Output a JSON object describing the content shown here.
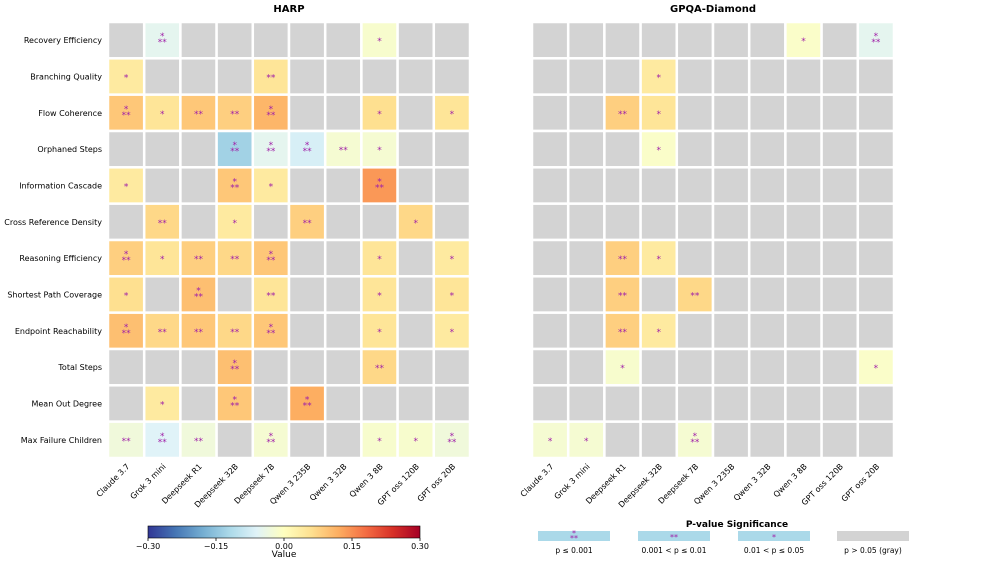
{
  "chart_data": [
    {
      "type": "heatmap",
      "title": "HARP",
      "rows": [
        "Recovery Efficiency",
        "Branching Quality",
        "Flow Coherence",
        "Orphaned Steps",
        "Information Cascade",
        "Cross Reference Density",
        "Reasoning Efficiency",
        "Shortest Path Coverage",
        "Endpoint Reachability",
        "Total Steps",
        "Mean Out Degree",
        "Max Failure Children"
      ],
      "columns": [
        "Claude 3.7",
        "Grok 3 mini",
        "Deepseek R1",
        "Deepseek 32B",
        "Deepseek 7B",
        "Qwen 3 235B",
        "Qwen 3 32B",
        "Qwen 3 8B",
        "GPT oss 120B",
        "GPT oss 20B"
      ],
      "values": [
        [
          null,
          -0.05,
          null,
          null,
          null,
          null,
          null,
          -0.015,
          null,
          null
        ],
        [
          0.04,
          null,
          null,
          null,
          0.05,
          null,
          null,
          null,
          null,
          null
        ],
        [
          0.09,
          0.05,
          0.09,
          0.08,
          0.11,
          null,
          null,
          0.06,
          null,
          0.05
        ],
        [
          null,
          null,
          null,
          -0.13,
          -0.05,
          -0.07,
          -0.02,
          -0.02,
          null,
          null
        ],
        [
          0.04,
          null,
          null,
          0.09,
          0.04,
          null,
          null,
          0.14,
          null,
          null
        ],
        [
          null,
          0.07,
          null,
          0.04,
          null,
          0.08,
          null,
          null,
          0.07,
          null
        ],
        [
          0.08,
          0.05,
          0.08,
          0.07,
          0.09,
          null,
          null,
          0.05,
          null,
          0.04
        ],
        [
          0.06,
          null,
          0.1,
          null,
          0.05,
          null,
          null,
          0.05,
          null,
          0.05
        ],
        [
          0.1,
          0.07,
          0.09,
          0.07,
          0.09,
          null,
          null,
          0.05,
          null,
          0.04
        ],
        [
          null,
          null,
          null,
          0.1,
          null,
          null,
          null,
          0.07,
          null,
          null
        ],
        [
          null,
          0.04,
          null,
          0.09,
          null,
          0.12,
          null,
          null,
          null,
          null
        ],
        [
          -0.03,
          -0.06,
          -0.03,
          null,
          -0.02,
          null,
          null,
          -0.015,
          -0.015,
          -0.03
        ]
      ],
      "significance": [
        [
          "",
          "***",
          "",
          "",
          "",
          "",
          "",
          "*",
          "",
          ""
        ],
        [
          "*",
          "",
          "",
          "",
          "**",
          "",
          "",
          "",
          "",
          ""
        ],
        [
          "***",
          "*",
          "**",
          "**",
          "***",
          "",
          "",
          "*",
          "",
          "*"
        ],
        [
          "",
          "",
          "",
          "***",
          "***",
          "***",
          "**",
          "*",
          "",
          ""
        ],
        [
          "*",
          "",
          "",
          "***",
          "*",
          "",
          "",
          "***",
          "",
          ""
        ],
        [
          "",
          "**",
          "",
          "*",
          "",
          "**",
          "",
          "",
          "*",
          ""
        ],
        [
          "***",
          "*",
          "**",
          "**",
          "***",
          "",
          "",
          "*",
          "",
          "*"
        ],
        [
          "*",
          "",
          "***",
          "",
          "**",
          "",
          "",
          "*",
          "",
          "*"
        ],
        [
          "***",
          "**",
          "**",
          "**",
          "***",
          "",
          "",
          "*",
          "",
          "*"
        ],
        [
          "",
          "",
          "",
          "***",
          "",
          "",
          "",
          "**",
          "",
          ""
        ],
        [
          "",
          "*",
          "",
          "***",
          "",
          "***",
          "",
          "",
          "",
          ""
        ],
        [
          "**",
          "***",
          "**",
          "",
          "***",
          "",
          "",
          "*",
          "*",
          "***"
        ]
      ]
    },
    {
      "type": "heatmap",
      "title": "GPQA-Diamond",
      "rows": [
        "Recovery Efficiency",
        "Branching Quality",
        "Flow Coherence",
        "Orphaned Steps",
        "Information Cascade",
        "Cross Reference Density",
        "Reasoning Efficiency",
        "Shortest Path Coverage",
        "Endpoint Reachability",
        "Total Steps",
        "Mean Out Degree",
        "Max Failure Children"
      ],
      "columns": [
        "Claude 3.7",
        "Grok 3 mini",
        "Deepseek R1",
        "Deepseek 32B",
        "Deepseek 7B",
        "Qwen 3 235B",
        "Qwen 3 32B",
        "Qwen 3 8B",
        "GPT oss 120B",
        "GPT oss 20B"
      ],
      "values": [
        [
          null,
          null,
          null,
          null,
          null,
          null,
          null,
          -0.01,
          null,
          -0.05
        ],
        [
          null,
          null,
          null,
          0.04,
          null,
          null,
          null,
          null,
          null,
          null
        ],
        [
          null,
          null,
          0.08,
          0.05,
          null,
          null,
          null,
          null,
          null,
          null
        ],
        [
          null,
          null,
          null,
          -0.01,
          null,
          null,
          null,
          null,
          null,
          null
        ],
        [
          null,
          null,
          null,
          null,
          null,
          null,
          null,
          null,
          null,
          null
        ],
        [
          null,
          null,
          null,
          null,
          null,
          null,
          null,
          null,
          null,
          null
        ],
        [
          null,
          null,
          0.08,
          0.04,
          null,
          null,
          null,
          null,
          null,
          null
        ],
        [
          null,
          null,
          0.08,
          null,
          0.07,
          null,
          null,
          null,
          null,
          null
        ],
        [
          null,
          null,
          0.08,
          0.04,
          null,
          null,
          null,
          null,
          null,
          null
        ],
        [
          null,
          null,
          -0.015,
          null,
          null,
          null,
          null,
          null,
          null,
          -0.01
        ],
        [
          null,
          null,
          null,
          null,
          null,
          null,
          null,
          null,
          null,
          null
        ],
        [
          -0.02,
          -0.02,
          null,
          null,
          -0.02,
          null,
          null,
          null,
          null,
          null
        ]
      ],
      "significance": [
        [
          "",
          "",
          "",
          "",
          "",
          "",
          "",
          "*",
          "",
          "***"
        ],
        [
          "",
          "",
          "",
          "*",
          "",
          "",
          "",
          "",
          "",
          ""
        ],
        [
          "",
          "",
          "**",
          "*",
          "",
          "",
          "",
          "",
          "",
          ""
        ],
        [
          "",
          "",
          "",
          "*",
          "",
          "",
          "",
          "",
          "",
          ""
        ],
        [
          "",
          "",
          "",
          "",
          "",
          "",
          "",
          "",
          "",
          ""
        ],
        [
          "",
          "",
          "",
          "",
          "",
          "",
          "",
          "",
          "",
          ""
        ],
        [
          "",
          "",
          "**",
          "*",
          "",
          "",
          "",
          "",
          "",
          ""
        ],
        [
          "",
          "",
          "**",
          "",
          "**",
          "",
          "",
          "",
          "",
          ""
        ],
        [
          "",
          "",
          "**",
          "*",
          "",
          "",
          "",
          "",
          "",
          ""
        ],
        [
          "",
          "",
          "*",
          "",
          "",
          "",
          "",
          "",
          "",
          "*"
        ],
        [
          "",
          "",
          "",
          "",
          "",
          "",
          "",
          "",
          "",
          ""
        ],
        [
          "*",
          "*",
          "",
          "",
          "***",
          "",
          "",
          "",
          "",
          ""
        ]
      ]
    }
  ],
  "colorbar": {
    "label": "Value",
    "ticks": [
      "−0.30",
      "−0.15",
      "0.00",
      "0.15",
      "0.30"
    ],
    "range": [
      -0.3,
      0.3
    ],
    "colormap": "RdYlBu_r"
  },
  "significance_legend": {
    "title": "P-value Significance",
    "items": [
      {
        "marker": "***",
        "label": "p ≤ 0.001"
      },
      {
        "marker": "**",
        "label": "0.001 < p ≤ 0.01"
      },
      {
        "marker": "*",
        "label": "0.01 < p ≤ 0.05"
      },
      {
        "marker": "",
        "label": "p > 0.05 (gray)"
      }
    ],
    "swatch_color": "#abd9e9",
    "gray_color": "#d3d3d3"
  },
  "colors": {
    "gray": "#d3d3d3",
    "star": "#a020a8"
  }
}
